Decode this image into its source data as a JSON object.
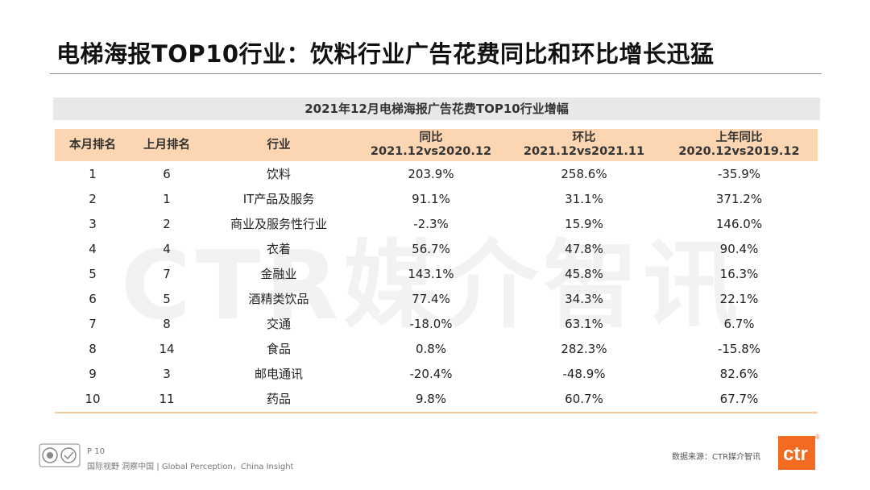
{
  "title": "电梯海报TOP10行业：饮料行业广告花费同比和环比增长迅猛",
  "watermark": "CTR媒介智讯",
  "table": {
    "caption": "2021年12月电梯海报广告花费TOP10行业增幅",
    "headers": {
      "rank_this_month": "本月排名",
      "rank_last_month": "上月排名",
      "industry": "行业",
      "yoy": {
        "label": "同比",
        "period": "2021.12vs2020.12"
      },
      "mom": {
        "label": "环比",
        "period": "2021.12vs2021.11"
      },
      "prev_yoy": {
        "label": "上年同比",
        "period": "2020.12vs2019.12"
      }
    },
    "rows": [
      {
        "rank": "1",
        "last_rank": "6",
        "industry": "饮料",
        "yoy": "203.9%",
        "mom": "258.6%",
        "prev_yoy": "-35.9%"
      },
      {
        "rank": "2",
        "last_rank": "1",
        "industry": "IT产品及服务",
        "yoy": "91.1%",
        "mom": "31.1%",
        "prev_yoy": "371.2%"
      },
      {
        "rank": "3",
        "last_rank": "2",
        "industry": "商业及服务性行业",
        "yoy": "-2.3%",
        "mom": "15.9%",
        "prev_yoy": "146.0%"
      },
      {
        "rank": "4",
        "last_rank": "4",
        "industry": "衣着",
        "yoy": "56.7%",
        "mom": "47.8%",
        "prev_yoy": "90.4%"
      },
      {
        "rank": "5",
        "last_rank": "7",
        "industry": "金融业",
        "yoy": "143.1%",
        "mom": "45.8%",
        "prev_yoy": "16.3%"
      },
      {
        "rank": "6",
        "last_rank": "5",
        "industry": "酒精类饮品",
        "yoy": "77.4%",
        "mom": "34.3%",
        "prev_yoy": "22.1%"
      },
      {
        "rank": "7",
        "last_rank": "8",
        "industry": "交通",
        "yoy": "-18.0%",
        "mom": "63.1%",
        "prev_yoy": "6.7%"
      },
      {
        "rank": "8",
        "last_rank": "14",
        "industry": "食品",
        "yoy": "0.8%",
        "mom": "282.3%",
        "prev_yoy": "-15.8%"
      },
      {
        "rank": "9",
        "last_rank": "3",
        "industry": "邮电通讯",
        "yoy": "-20.4%",
        "mom": "-48.9%",
        "prev_yoy": "82.6%"
      },
      {
        "rank": "10",
        "last_rank": "11",
        "industry": "药品",
        "yoy": "9.8%",
        "mom": "60.7%",
        "prev_yoy": "67.7%"
      }
    ]
  },
  "footer": {
    "page": "P 10",
    "slogan": "国际视野  洞察中国 | Global Perception，China Insight",
    "source": "数据来源：CTR媒介智讯",
    "logo_text": "ctr",
    "registered_mark": "®"
  },
  "colors": {
    "header_bg": "#fcd6b3",
    "caption_bg": "#e8e8e8",
    "brand_orange": "#f26b21"
  }
}
